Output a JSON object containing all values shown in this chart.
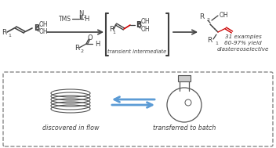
{
  "bg_color": "#ffffff",
  "text_color": "#333333",
  "bond_color": "#404040",
  "red_color": "#cc0000",
  "blue_color": "#5b9bd5",
  "dashed_box_color": "#888888",
  "title": "",
  "bottom_text_left": "discovered in flow",
  "bottom_text_right": "transferred to batch",
  "label_31": "31 examples",
  "label_yield": "60-97% yield",
  "label_diastereo": "diastereoselective",
  "label_transient": "transient intermediate",
  "label_TMS": "TMS",
  "label_R1_left": "R",
  "label_R2": "R",
  "label_B": "B",
  "label_OH1": "OH",
  "label_OH2": "OH",
  "label_O": "O"
}
